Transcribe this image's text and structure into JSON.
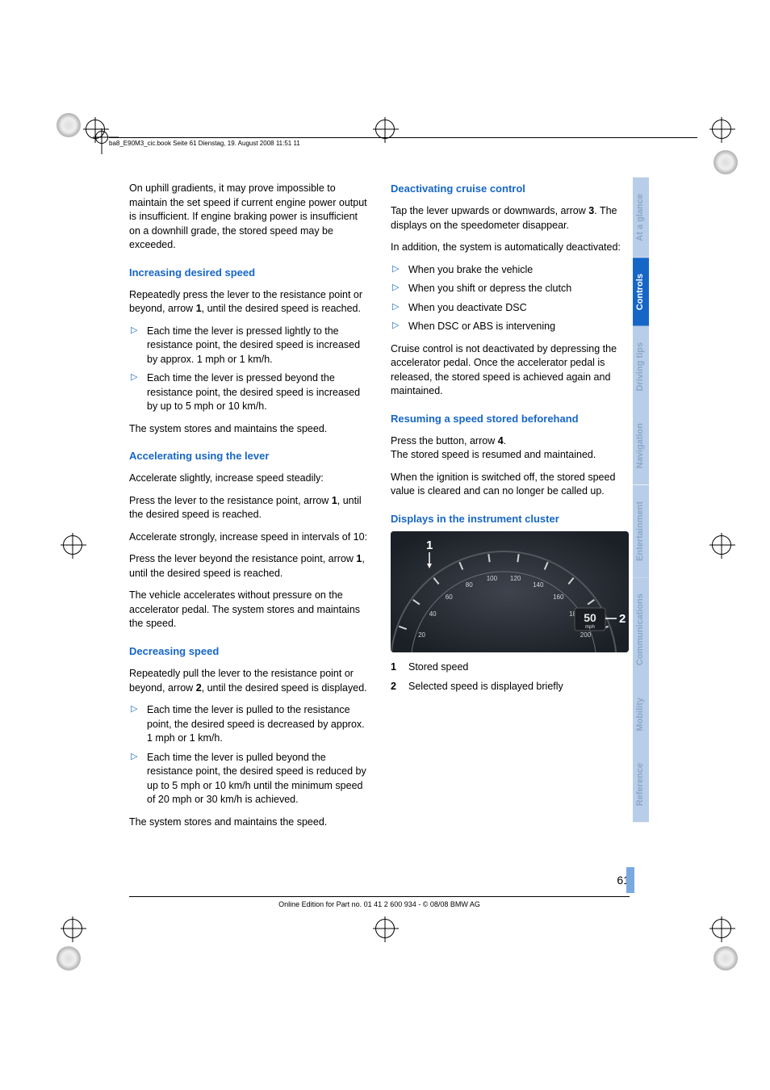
{
  "print": {
    "header_text": "ba8_E90M3_cic.book  Seite 61  Dienstag, 19. August 2008  11:51 11"
  },
  "tabs": {
    "items": [
      {
        "label": "At a glance",
        "bg": "#b8cde8",
        "fg": "#8aa8cc"
      },
      {
        "label": "Controls",
        "bg": "#1666c7",
        "fg": "#ffffff"
      },
      {
        "label": "Driving tips",
        "bg": "#b8cde8",
        "fg": "#8aa8cc"
      },
      {
        "label": "Navigation",
        "bg": "#b8cde8",
        "fg": "#8aa8cc"
      },
      {
        "label": "Entertainment",
        "bg": "#b8cde8",
        "fg": "#8aa8cc"
      },
      {
        "label": "Communications",
        "bg": "#b8cde8",
        "fg": "#8aa8cc"
      },
      {
        "label": "Mobility",
        "bg": "#b8cde8",
        "fg": "#8aa8cc"
      },
      {
        "label": "Reference",
        "bg": "#b8cde8",
        "fg": "#8aa8cc"
      }
    ]
  },
  "left": {
    "p0": "On uphill gradients, it may prove impossible to maintain the set speed if current engine power output is insufficient. If engine braking power is insufficient on a downhill grade, the stored speed may be exceeded.",
    "h1": "Increasing desired speed",
    "p1a": "Repeatedly press the lever to the resistance point or beyond, arrow ",
    "p1b": "1",
    "p1c": ", until the desired speed is reached.",
    "li1": "Each time the lever is pressed lightly to the resistance point, the desired speed is increased by approx. 1 mph or 1 km/h.",
    "li2": "Each time the lever is pressed beyond the resistance point, the desired speed is increased by up to 5 mph or 10 km/h.",
    "p2": "The system stores and maintains the speed.",
    "h2": "Accelerating using the lever",
    "p3": "Accelerate slightly, increase speed steadily:",
    "p4a": "Press the lever to the resistance point, arrow ",
    "p4b": "1",
    "p4c": ", until the desired speed is reached.",
    "p5": "Accelerate strongly, increase speed in intervals of 10:",
    "p6a": "Press the lever beyond the resistance point, arrow ",
    "p6b": "1",
    "p6c": ", until the desired speed is reached.",
    "p7": "The vehicle accelerates without pressure on the accelerator pedal. The system stores and maintains the speed.",
    "h3": "Decreasing speed",
    "p8a": "Repeatedly pull the lever to the resistance point or beyond, arrow ",
    "p8b": "2",
    "p8c": ", until the desired speed is displayed.",
    "li3": "Each time the lever is pulled to the resistance point, the desired speed is decreased by approx. 1 mph or 1 km/h.",
    "li4": "Each time the lever is pulled beyond the resistance point, the desired speed is reduced by up to 5 mph or 10 km/h until the minimum speed of 20 mph or 30 km/h is achieved.",
    "p9": "The system stores and maintains the speed."
  },
  "right": {
    "h1": "Deactivating cruise control",
    "p1a": "Tap the lever upwards or downwards, arrow ",
    "p1b": "3",
    "p1c": ". The displays on the speedometer disappear.",
    "p2": "In addition, the system is automatically deactivated:",
    "li1": "When you brake the vehicle",
    "li2": "When you shift or depress the clutch",
    "li3": "When you deactivate DSC",
    "li4": "When DSC or ABS is intervening",
    "p3": "Cruise control is not deactivated by depressing the accelerator pedal. Once the accelerator pedal is released, the stored speed is achieved again and maintained.",
    "h2": "Resuming a speed stored beforehand",
    "p4a": "Press the button, arrow ",
    "p4b": "4",
    "p4c": ".",
    "p4d": "The stored speed is resumed and maintained.",
    "p5": "When the ignition is switched off, the stored speed value is cleared and can no longer be called up.",
    "h3": "Displays in the instrument cluster",
    "legend1": "Stored speed",
    "legend2": "Selected speed is displayed briefly"
  },
  "cluster": {
    "background": "#2a2f38",
    "needle_color": "#d8d8d8",
    "tick_color": "#d0d4d8",
    "ticks": [
      "20",
      "40",
      "60",
      "80",
      "100",
      "120",
      "140",
      "160",
      "180",
      "200"
    ],
    "callout_1": "1",
    "callout_2": "2",
    "indicator_value": "50",
    "indicator_unit": "mph",
    "indicator_bg": "#1a1d22",
    "indicator_fg": "#e8e8e8"
  },
  "footer": {
    "page_num": "61",
    "text": "Online Edition for Part no. 01 41 2 600 934 - © 08/08 BMW AG"
  }
}
